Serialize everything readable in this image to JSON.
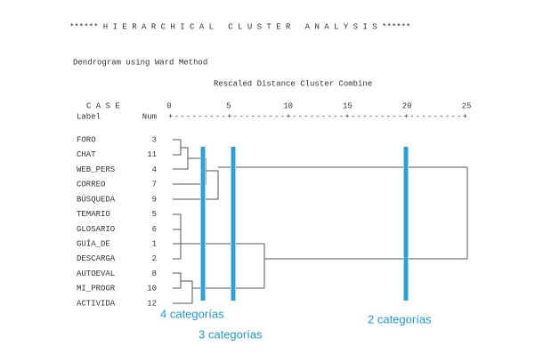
{
  "header": {
    "title": "****** H I E R A R C H I C A L   C L U S T E R   A N A L Y S I S ******",
    "subtitle": "Dendrogram using Ward Method"
  },
  "axis": {
    "title": "Rescaled Distance Cluster Combine",
    "ticks": [
      0,
      5,
      10,
      15,
      20,
      25
    ],
    "rule": "+---------+---------+---------+---------+---------+"
  },
  "columns": {
    "case": "C A S E",
    "label": "Label",
    "num": "Num"
  },
  "rows": [
    {
      "label": "FORO",
      "num": 3
    },
    {
      "label": "CHAT",
      "num": 11
    },
    {
      "label": "WEB_PERS",
      "num": 4
    },
    {
      "label": "CORREO",
      "num": 7
    },
    {
      "label": "BÚSQUEDA",
      "num": 9
    },
    {
      "label": "TEMARIO",
      "num": 5
    },
    {
      "label": "GLOSARIO",
      "num": 6
    },
    {
      "label": "GUÍA_DE",
      "num": 1
    },
    {
      "label": "DESCARGA",
      "num": 2
    },
    {
      "label": "AUTOEVAL",
      "num": 8
    },
    {
      "label": "MI_PROGR",
      "num": 10
    },
    {
      "label": "ACTIVIDA",
      "num": 12
    }
  ],
  "annotations": [
    "4 categorías",
    "3 categorías",
    "2 categorías"
  ]
}
